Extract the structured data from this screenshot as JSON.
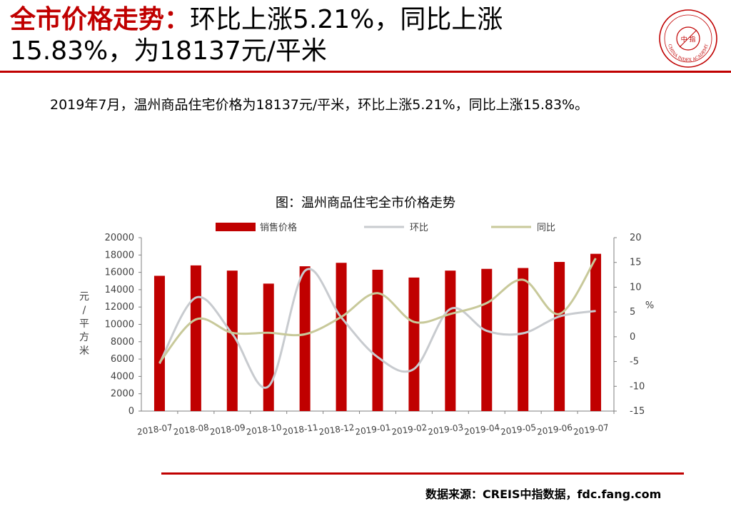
{
  "headline": {
    "highlight": "全市价格走势：",
    "line1_rest": "环比上涨5.21%，同比上涨",
    "line2": "15.83%，为18137元/平米"
  },
  "logo": {
    "icon": "china-index-academy-seal",
    "text": "CHINA INDEX ACADEMY",
    "inner_text": "中 指",
    "color": "#c00000"
  },
  "summary": "2019年7月，温州商品住宅价格为18137元/平米，环比上涨5.21%，同比上涨15.83%。",
  "chart_title": "图：温州商品住宅全市价格走势",
  "source": "数据来源：CREIS中指数据，fdc.fang.com",
  "colors": {
    "accent": "#c00000",
    "bar": "#c00000",
    "mom": "#c8cbcf",
    "yoy": "#c8c99a"
  },
  "chart_data": {
    "type": "bar",
    "categories": [
      "2018-07",
      "2018-08",
      "2018-09",
      "2018-10",
      "2018-11",
      "2018-12",
      "2019-01",
      "2019-02",
      "2019-03",
      "2019-04",
      "2019-05",
      "2019-06",
      "2019-07"
    ],
    "series": [
      {
        "name": "销售价格",
        "type": "bar",
        "axis": "left",
        "values": [
          15600,
          16800,
          16200,
          14700,
          16700,
          17100,
          16300,
          15400,
          16200,
          16400,
          16500,
          17200,
          18137
        ]
      },
      {
        "name": "环比",
        "type": "line",
        "axis": "right",
        "values": [
          -5.4,
          7.9,
          0.6,
          -10.0,
          13.3,
          3.9,
          -4.1,
          -6.5,
          5.6,
          1.2,
          0.7,
          4.1,
          5.21
        ]
      },
      {
        "name": "同比",
        "type": "line",
        "axis": "right",
        "values": [
          -5.2,
          3.5,
          0.8,
          0.8,
          0.5,
          4.0,
          8.8,
          3.0,
          4.6,
          6.8,
          11.5,
          4.6,
          15.83
        ]
      }
    ],
    "y_left": {
      "label": "元/平方米",
      "min": 0,
      "max": 20000,
      "ticks": [
        0,
        2000,
        4000,
        6000,
        8000,
        10000,
        12000,
        14000,
        16000,
        18000,
        20000
      ]
    },
    "y_right": {
      "label": "%",
      "min": -15,
      "max": 20,
      "ticks": [
        -15,
        -10,
        -5,
        0,
        5,
        10,
        15,
        20
      ]
    },
    "legend": {
      "placement": "top",
      "labels": [
        "销售价格",
        "环比",
        "同比"
      ]
    },
    "grid": false
  }
}
